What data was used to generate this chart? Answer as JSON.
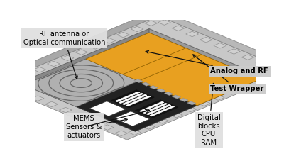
{
  "board_top": "#c8c8c8",
  "board_front": "#a8a8a8",
  "board_right": "#b8b8b8",
  "chip_bg": "#a0a0a0",
  "chip_top_color": "#989898",
  "mems_dark": "#222222",
  "orange": "#E8A020",
  "spiral_bg": "#b0b0b0",
  "pad_light": "#d0d0d0",
  "pad_dark": "#909090",
  "white": "#ffffff",
  "label_mems": "MEMS\nSensors &\nactuators",
  "label_digital": "Digital\nblocks\nCPU\nRAM",
  "label_test": "Test Wrapper",
  "label_analog": "Analog and RF",
  "label_rf": "RF antenna or\nOptical communication",
  "label_box_gray": "#e0e0e0",
  "label_box_dark": "#cccccc"
}
